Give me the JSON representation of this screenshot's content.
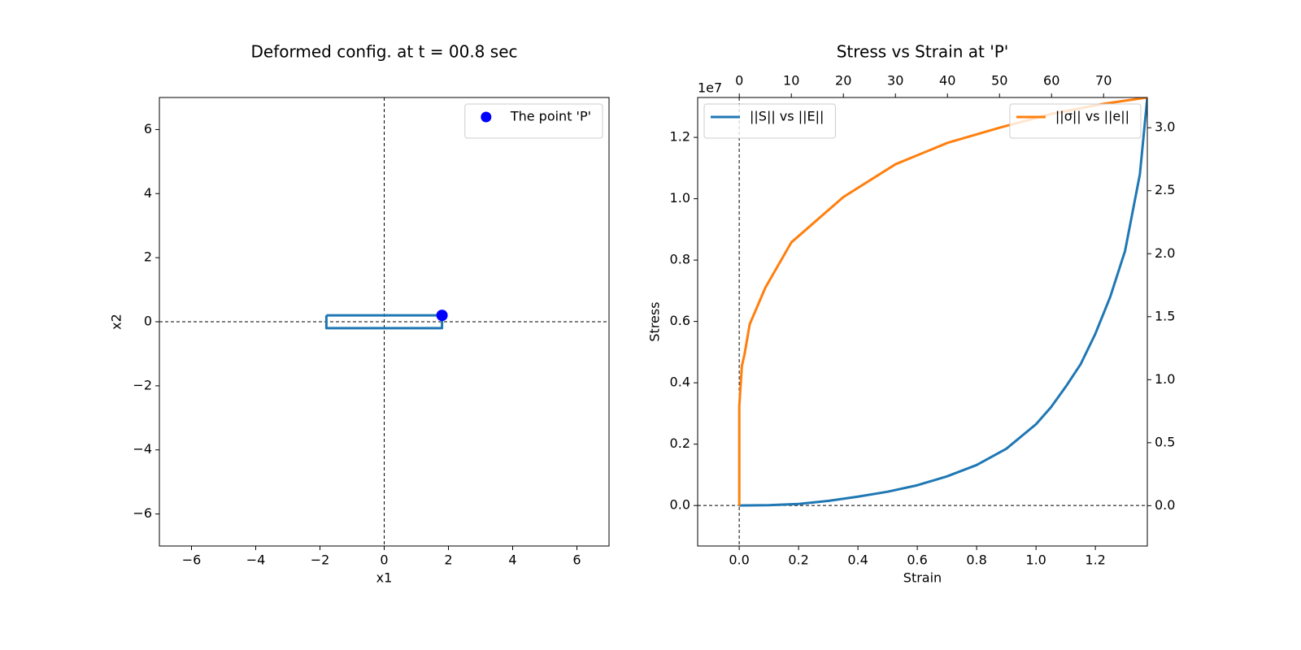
{
  "chart_data": [
    {
      "type": "line",
      "title": "Deformed config. at t = 00.8 sec",
      "xlabel": "x1",
      "ylabel": "x2",
      "xlim": [
        -7,
        7
      ],
      "ylim": [
        -7,
        7
      ],
      "xticks": [
        {
          "value": -6,
          "label": "−6"
        },
        {
          "value": -4,
          "label": "−4"
        },
        {
          "value": -2,
          "label": "−2"
        },
        0,
        2,
        4,
        6
      ],
      "yticks": [
        {
          "value": -6,
          "label": "−6"
        },
        {
          "value": -4,
          "label": "−4"
        },
        {
          "value": -2,
          "label": "−2"
        },
        0,
        2,
        4,
        6
      ],
      "vline": 0,
      "hline": 0,
      "legend": "upper right",
      "series": [
        {
          "color": "#1f77b4",
          "x": [
            -1.8,
            1.8,
            1.8,
            -1.8,
            -1.8
          ],
          "values": [
            0.2,
            0.2,
            -0.2,
            -0.2,
            0.2
          ]
        },
        {
          "name": "The point 'P'",
          "type": "scatter",
          "color": "#0000ff",
          "x": [
            1.8
          ],
          "values": [
            0.2
          ]
        }
      ]
    },
    {
      "type": "line",
      "title": "Stress vs Strain at 'P'",
      "xlabel": "Strain",
      "ylabel": "Stress",
      "y_offset": "1e7",
      "xlim": [
        -0.14,
        1.375
      ],
      "ylim": [
        -0.132,
        1.33
      ],
      "x2lim": [
        -8,
        78.4
      ],
      "y2lim": [
        -0.32,
        3.24
      ],
      "xticks": [
        {
          "value": 0,
          "label": "0.0"
        },
        0.2,
        0.4,
        0.6,
        0.8,
        {
          "value": 1,
          "label": "1.0"
        },
        1.2
      ],
      "yticks": [
        {
          "value": 0,
          "label": "0.0"
        },
        0.2,
        0.4,
        0.6,
        0.8,
        {
          "value": 1,
          "label": "1.0"
        },
        1.2
      ],
      "x2ticks": [
        0,
        10,
        20,
        30,
        40,
        50,
        60,
        70
      ],
      "y2ticks": [
        {
          "value": 0,
          "label": "0.0"
        },
        0.5,
        {
          "value": 1,
          "label": "1.0"
        },
        1.5,
        {
          "value": 2,
          "label": "2.0"
        },
        2.5,
        {
          "value": 3,
          "label": "3.0"
        }
      ],
      "vline": 0,
      "hline": 0,
      "series": [
        {
          "name": "||S|| vs ||E||",
          "color": "#1f77b4",
          "legend": "upper left",
          "x": [
            0,
            0.1,
            0.2,
            0.3,
            0.4,
            0.5,
            0.6,
            0.7,
            0.8,
            0.9,
            1.0,
            1.05,
            1.1,
            1.15,
            1.2,
            1.25,
            1.3,
            1.35,
            1.375
          ],
          "values": [
            0,
            0.001,
            0.005,
            0.015,
            0.029,
            0.045,
            0.066,
            0.095,
            0.132,
            0.185,
            0.265,
            0.32,
            0.387,
            0.46,
            0.56,
            0.68,
            0.83,
            1.08,
            1.33
          ]
        },
        {
          "name": "||σ|| vs ||e||",
          "color": "#ff7f0e",
          "legend": "upper right",
          "axis": "y2",
          "x_axis": "top",
          "x": [
            0,
            0,
            0.5,
            1,
            2,
            5,
            10,
            20,
            30,
            40,
            50,
            60,
            70,
            78.4
          ],
          "values": [
            0,
            0.79,
            1.11,
            1.2,
            1.44,
            1.73,
            2.09,
            2.45,
            2.71,
            2.88,
            3.0,
            3.11,
            3.19,
            3.24
          ]
        }
      ]
    }
  ]
}
